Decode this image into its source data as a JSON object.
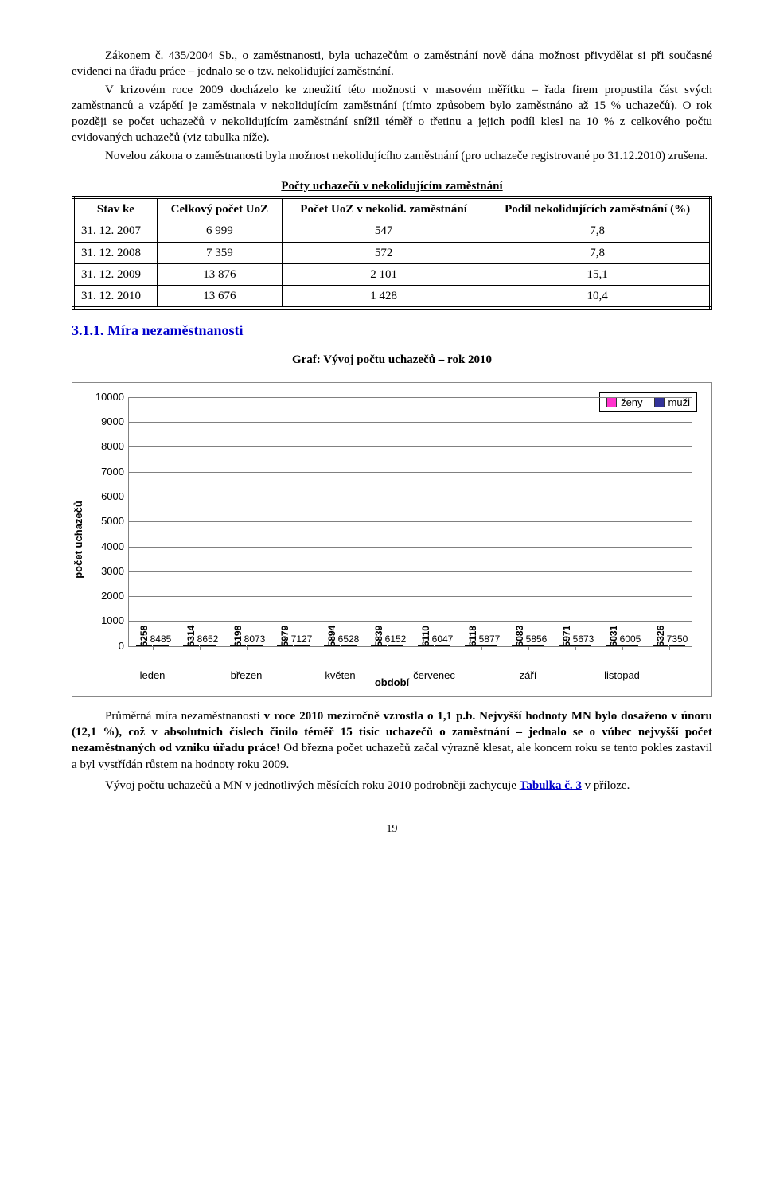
{
  "paragraphs": {
    "p1": "Zákonem č. 435/2004 Sb., o zaměstnanosti, byla uchazečům o zaměstnání nově dána možnost přivydělat si při současné evidenci na úřadu práce – jednalo se o tzv. nekolidující zaměstnání.",
    "p2": "V krizovém roce 2009 docházelo ke zneužití této možnosti v masovém měřítku – řada firem propustila část svých zaměstnanců a vzápětí je zaměstnala v nekolidujícím zaměstnání (tímto způsobem bylo zaměstnáno až 15 % uchazečů). O rok později se počet uchazečů v nekolidujícím zaměstnání snížil téměř o třetinu a jejich podíl klesl na 10 % z celkového počtu evidovaných uchazečů (viz tabulka níže).",
    "p3": "Novelou zákona o zaměstnanosti byla možnost nekolidujícího zaměstnání (pro uchazeče registrované po 31.12.2010) zrušena."
  },
  "table": {
    "title": "Počty uchazečů v nekolidujícím zaměstnání",
    "columns": [
      "Stav ke",
      "Celkový počet UoZ",
      "Počet UoZ v nekolid. zaměstnání",
      "Podíl nekolidujících zaměstnání (%)"
    ],
    "rows": [
      [
        "31. 12. 2007",
        "6 999",
        "547",
        "7,8"
      ],
      [
        "31. 12. 2008",
        "7 359",
        "572",
        "7,8"
      ],
      [
        "31. 12. 2009",
        "13 876",
        "2 101",
        "15,1"
      ],
      [
        "31. 12. 2010",
        "13 676",
        "1 428",
        "10,4"
      ]
    ]
  },
  "section_heading": "3.1.1. Míra nezaměstnanosti",
  "chart": {
    "title": "Graf: Vývoj počtu uchazečů – rok 2010",
    "yaxis_label": "počet uchazečů",
    "xaxis_label": "období",
    "ylim": [
      0,
      10000
    ],
    "ytick_step": 1000,
    "legend": [
      {
        "label": "ženy",
        "color": "#ff33cc"
      },
      {
        "label": "muži",
        "color": "#333399"
      }
    ],
    "x_ticks_visible": [
      {
        "pos": 0,
        "label": "leden"
      },
      {
        "pos": 2,
        "label": "březen"
      },
      {
        "pos": 4,
        "label": "květen"
      },
      {
        "pos": 6,
        "label": "červenec"
      },
      {
        "pos": 8,
        "label": "září"
      },
      {
        "pos": 10,
        "label": "listopad"
      }
    ],
    "series": [
      {
        "zeny": 6258,
        "muzi": 8485
      },
      {
        "zeny": 6314,
        "muzi": 8652
      },
      {
        "zeny": 6198,
        "muzi": 8073
      },
      {
        "zeny": 5979,
        "muzi": 7127
      },
      {
        "zeny": 5894,
        "muzi": 6528
      },
      {
        "zeny": 5839,
        "muzi": 6152
      },
      {
        "zeny": 6110,
        "muzi": 6047
      },
      {
        "zeny": 6118,
        "muzi": 5877
      },
      {
        "zeny": 6083,
        "muzi": 5856
      },
      {
        "zeny": 5971,
        "muzi": 5673
      },
      {
        "zeny": 6031,
        "muzi": 6005
      },
      {
        "zeny": 6326,
        "muzi": 7350
      }
    ],
    "bar_colors": {
      "zeny": "#ff33cc",
      "muzi": "#333399"
    },
    "grid_color": "#808080",
    "background_color": "#ffffff"
  },
  "after_chart": {
    "p1_pre": "Průměrná míra nezaměstnanosti ",
    "p1_bold1": "v roce 2010 meziročně vzrostla o 1,1 p.b. Nejvyšší hodnoty MN bylo dosaženo v únoru (12,1 %), což v absolutních číslech činilo téměř 15 tisíc uchazečů o zaměstnání – jednalo se o vůbec nejvyšší počet nezaměstnaných od vzniku úřadu práce!",
    "p1_post": " Od března počet uchazečů začal výrazně klesat, ale koncem roku se tento pokles zastavil a byl vystřídán růstem na hodnoty roku 2009.",
    "p2_pre": "Vývoj počtu uchazečů a MN v jednotlivých měsících roku 2010 podrobněji zachycuje ",
    "p2_link": "Tabulka č. 3",
    "p2_post": " v příloze."
  },
  "page_number": "19"
}
